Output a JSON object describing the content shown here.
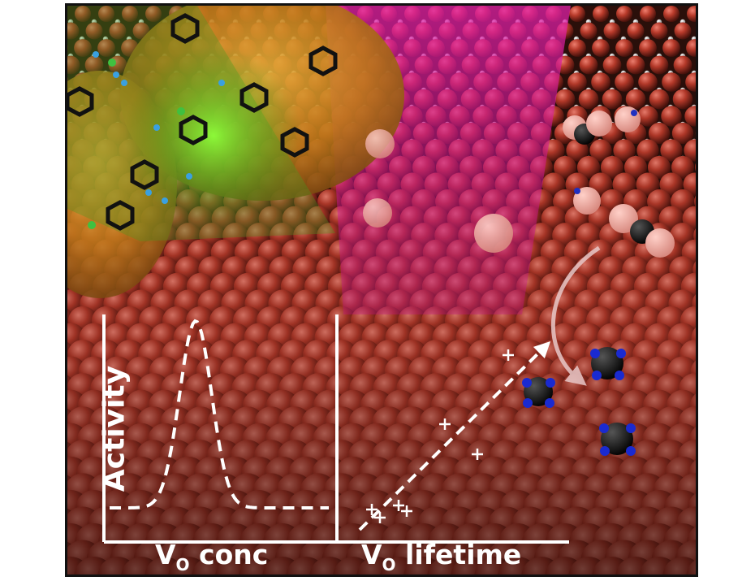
{
  "panel_left": {
    "ylabel": "Activity",
    "xlabel_main": "V",
    "xlabel_sub": "O",
    "xlabel_rest": " conc",
    "curve": "gaussian-peak"
  },
  "panel_right": {
    "xlabel_main": "V",
    "xlabel_sub": "O",
    "xlabel_rest": " lifetime",
    "trend": "increasing"
  },
  "colors": {
    "surface_atom": "#b83a2a",
    "green_glow": "#5ed62a",
    "magenta_beam": "#d1209a",
    "axis": "#ffffff"
  }
}
